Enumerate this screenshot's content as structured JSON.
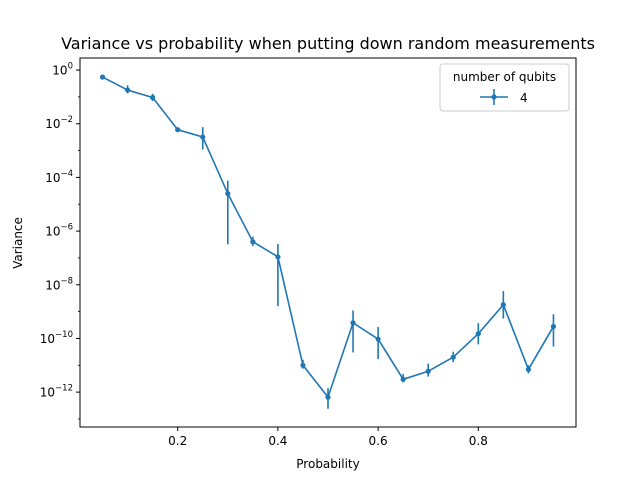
{
  "chart_data": {
    "type": "line",
    "title": "Variance vs probability when putting down random measurements",
    "xlabel": "Probability",
    "ylabel": "Variance",
    "xlim": [
      0.005,
      0.995
    ],
    "ylim_log10": [
      -13.3,
      0.45
    ],
    "y_scale": "log",
    "grid": false,
    "x_ticks": [
      {
        "value": 0.2,
        "label": "0.2"
      },
      {
        "value": 0.4,
        "label": "0.4"
      },
      {
        "value": 0.6,
        "label": "0.6"
      },
      {
        "value": 0.8,
        "label": "0.8"
      }
    ],
    "y_ticks": [
      {
        "exp": 0,
        "base": "10",
        "sup": "0"
      },
      {
        "exp": -2,
        "base": "10",
        "sup": "−2"
      },
      {
        "exp": -4,
        "base": "10",
        "sup": "−4"
      },
      {
        "exp": -6,
        "base": "10",
        "sup": "−6"
      },
      {
        "exp": -8,
        "base": "10",
        "sup": "−8"
      },
      {
        "exp": -10,
        "base": "10",
        "sup": "−10"
      },
      {
        "exp": -12,
        "base": "10",
        "sup": "−12"
      }
    ],
    "legend": {
      "title": "number of qubits",
      "placement": "top-right"
    },
    "series": [
      {
        "name": "4",
        "color": "#1f77b4",
        "error_bars": true,
        "points": [
          {
            "x": 0.05,
            "y": 0.55,
            "ylo": 0.47,
            "yhi": 0.64
          },
          {
            "x": 0.1,
            "y": 0.18,
            "ylo": 0.135,
            "yhi": 0.27
          },
          {
            "x": 0.15,
            "y": 0.095,
            "ylo": 0.07,
            "yhi": 0.13
          },
          {
            "x": 0.2,
            "y": 0.006,
            "ylo": 0.005,
            "yhi": 0.0072
          },
          {
            "x": 0.25,
            "y": 0.0032,
            "ylo": 0.0011,
            "yhi": 0.0075
          },
          {
            "x": 0.3,
            "y": 2.5e-05,
            "ylo": 3.2e-07,
            "yhi": 7.5e-05
          },
          {
            "x": 0.35,
            "y": 4e-07,
            "ylo": 2.8e-07,
            "yhi": 6.2e-07
          },
          {
            "x": 0.4,
            "y": 1.1e-07,
            "ylo": 1.6e-09,
            "yhi": 3.3e-07
          },
          {
            "x": 0.45,
            "y": 1e-11,
            "ylo": 7.5e-12,
            "yhi": 1.6e-11
          },
          {
            "x": 0.5,
            "y": 6.5e-13,
            "ylo": 2.4e-13,
            "yhi": 1.4e-12
          },
          {
            "x": 0.55,
            "y": 3.8e-10,
            "ylo": 3e-11,
            "yhi": 1.1e-09
          },
          {
            "x": 0.6,
            "y": 9.5e-11,
            "ylo": 1.7e-11,
            "yhi": 2.7e-10
          },
          {
            "x": 0.65,
            "y": 3e-12,
            "ylo": 2.3e-12,
            "yhi": 4.8e-12
          },
          {
            "x": 0.7,
            "y": 6e-12,
            "ylo": 3.8e-12,
            "yhi": 1.15e-11
          },
          {
            "x": 0.75,
            "y": 2e-11,
            "ylo": 1.3e-11,
            "yhi": 3.2e-11
          },
          {
            "x": 0.8,
            "y": 1.5e-10,
            "ylo": 6e-11,
            "yhi": 3.7e-10
          },
          {
            "x": 0.85,
            "y": 1.8e-09,
            "ylo": 5.5e-10,
            "yhi": 5.8e-09
          },
          {
            "x": 0.9,
            "y": 7e-12,
            "ylo": 5e-12,
            "yhi": 1e-11
          },
          {
            "x": 0.95,
            "y": 2.8e-10,
            "ylo": 5e-11,
            "yhi": 8e-10
          }
        ]
      }
    ]
  }
}
